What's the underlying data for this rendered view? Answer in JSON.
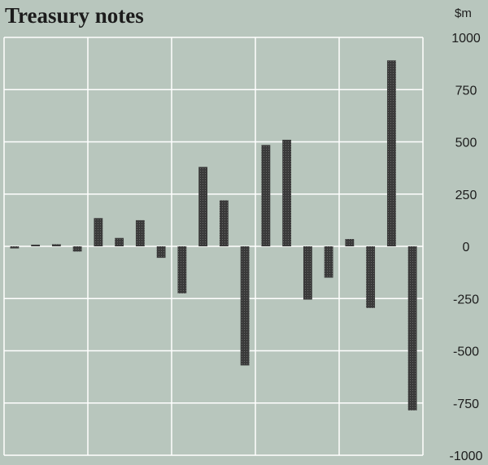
{
  "chart_data": {
    "type": "bar",
    "title": "Treasury notes",
    "ylabel": "$m",
    "ylim": [
      -1000,
      1000
    ],
    "yticks": [
      1000,
      750,
      500,
      250,
      0,
      -250,
      -500,
      -750,
      -1000
    ],
    "ytick_labels": [
      "1000",
      "750",
      "500",
      "250",
      "0",
      "-250",
      "-500",
      "-750",
      "-1000"
    ],
    "x_grid_divisions": 5,
    "bars_per_division": 4,
    "grid": true,
    "values": [
      -10,
      8,
      10,
      -25,
      135,
      40,
      125,
      -55,
      -225,
      380,
      220,
      -570,
      485,
      510,
      -255,
      -150,
      35,
      -295,
      890,
      -785
    ],
    "bar_color": "#3e3e3e",
    "grid_color": "#ffffff",
    "background_color": "#b8c6bd"
  }
}
